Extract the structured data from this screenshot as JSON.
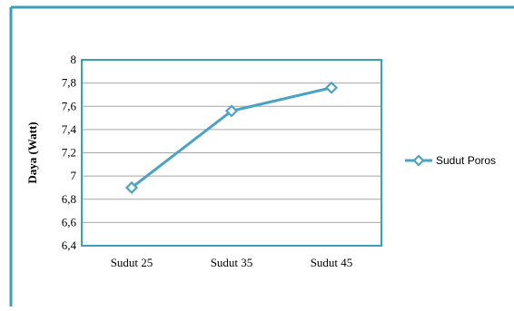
{
  "colors": {
    "frame": "#3aa0b8",
    "series": "#4aa3c3",
    "gridline": "#a6a6a6",
    "plot_border": "#3aa0b8",
    "background": "#ffffff"
  },
  "chart_data": {
    "type": "line",
    "categories": [
      "Sudut 25",
      "Sudut 35",
      "Sudut 45"
    ],
    "series": [
      {
        "name": "Sudut Poros",
        "values": [
          6.9,
          7.56,
          7.76
        ],
        "marker": "diamond-icon"
      }
    ],
    "ylabel": "Daya (Watt)",
    "xlabel": "",
    "ylim": [
      6.4,
      8
    ],
    "yticks": [
      6.4,
      6.6,
      6.8,
      7,
      7.2,
      7.4,
      7.6,
      7.8,
      8
    ],
    "ytick_labels": [
      "6,4",
      "6,6",
      "6,8",
      "7",
      "7,2",
      "7,4",
      "7,6",
      "7,8",
      "8"
    ],
    "grid": true,
    "legend_position": "right"
  }
}
